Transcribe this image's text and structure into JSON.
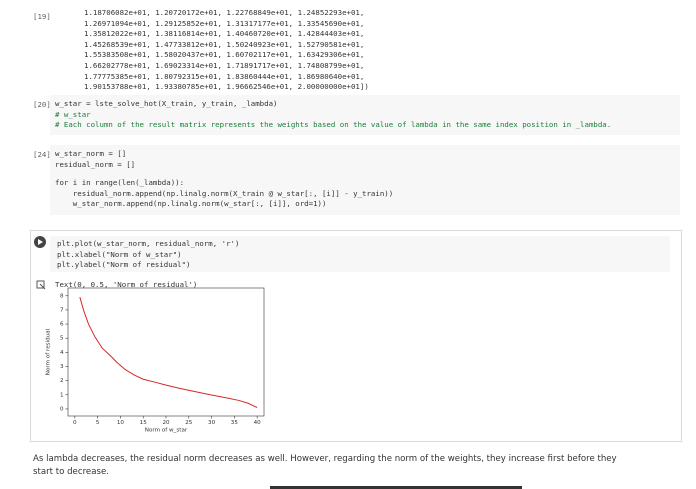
{
  "cells": [
    {
      "prompt": "[19]",
      "output_lines": [
        "1.18706082e+01, 1.20720172e+01, 1.22768849e+01, 1.24852293e+01,",
        "1.26971094e+01, 1.29125852e+01, 1.31317177e+01, 1.33545690e+01,",
        "1.35812022e+01, 1.38116814e+01, 1.40460720e+01, 1.42844403e+01,",
        "1.45268539e+01, 1.47733812e+01, 1.50240923e+01, 1.52790581e+01,",
        "1.55383508e+01, 1.58020437e+01, 1.60702117e+01, 1.63429306e+01,",
        "1.66202778e+01, 1.69023314e+01, 1.71891717e+01, 1.74808799e+01,",
        "1.77775385e+01, 1.80792315e+01, 1.83860444e+01, 1.86980640e+01,",
        "1.90153788e+01, 1.93380785e+01, 1.96662546e+01, 2.00000000e+01])"
      ]
    },
    {
      "prompt": "[20]",
      "code": [
        [
          "w_star = lste_solve_hot(X_train, y_train, _lambda)",
          "# w_star",
          "# Each column of the result matrix represents the weights based on the value of lambda in the same index position in _lambda."
        ]
      ]
    },
    {
      "prompt": "[24]",
      "code": [
        [
          "w_star_norm = []",
          "residual_norm = []"
        ],
        [
          "for i in range(len(_lambda)):",
          "    residual_norm.append(np.linalg.norm(X_train @ w_star[:, [i]] - y_train))",
          "    w_star_norm.append(np.linalg.norm(w_star[:, [i]], ord=1))"
        ]
      ]
    },
    {
      "code": [
        [
          "plt.plot(w_star_norm, residual_norm, 'r')",
          "plt.xlabel(\"Norm of w_star\")",
          "plt.ylabel(\"Norm of residual\")"
        ]
      ],
      "output_text": "Text(0, 0.5, 'Norm of residual')"
    }
  ],
  "chart_data": {
    "type": "line",
    "xlabel": "Norm of w_star",
    "ylabel": "Norm of residual",
    "series": [
      {
        "color": "#d62728",
        "x": [
          1.1,
          2,
          3,
          4.4,
          6,
          8,
          9.2,
          11,
          13,
          15,
          17.5,
          19.8,
          23,
          26,
          29.7,
          33,
          36,
          38,
          40
        ],
        "values": [
          7.9,
          6.9,
          6.0,
          5.1,
          4.3,
          3.7,
          3.3,
          2.8,
          2.4,
          2.1,
          1.9,
          1.7,
          1.45,
          1.25,
          1.0,
          0.8,
          0.6,
          0.4,
          0.1
        ]
      }
    ],
    "xlim": [
      -1.5,
      41.5
    ],
    "ylim": [
      -0.5,
      8.55
    ],
    "xticks": [
      0,
      5,
      10,
      15,
      20,
      25,
      30,
      35,
      40
    ],
    "yticks": [
      0,
      1,
      2,
      3,
      4,
      5,
      6,
      7,
      8
    ]
  },
  "markdown": "As lambda decreases, the residual norm decreases as well. However, regarding the norm of the weights, they increase first before they start to decrease."
}
